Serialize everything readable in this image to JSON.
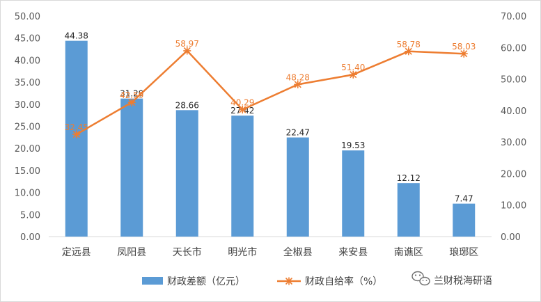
{
  "chart_data": {
    "type": "bar",
    "categories": [
      "定远县",
      "凤阳县",
      "天长市",
      "明光市",
      "全椒县",
      "来安县",
      "南谯区",
      "琅琊区"
    ],
    "series": [
      {
        "name": "财政差额（亿元）",
        "type": "bar",
        "axis": "left",
        "values": [
          44.38,
          31.29,
          28.66,
          27.42,
          22.47,
          19.53,
          12.12,
          7.47
        ],
        "labels": [
          "44.38",
          "31.29",
          "28.66",
          "27.42",
          "22.47",
          "19.53",
          "12.12",
          "7.47"
        ],
        "color": "#5b9bd5"
      },
      {
        "name": "财政自给率（%）",
        "type": "line",
        "axis": "right",
        "marker": "asterisk",
        "values": [
          32.45,
          42.59,
          58.97,
          40.29,
          48.28,
          51.4,
          58.78,
          58.03
        ],
        "labels": [
          "32.45",
          "42.59",
          "58.97",
          "40.29",
          "48.28",
          "51.40",
          "58.78",
          "58.03"
        ],
        "color": "#ed7d31"
      }
    ],
    "y_left": {
      "ylim": [
        0,
        50
      ],
      "ticks": [
        "0.00",
        "5.00",
        "10.00",
        "15.00",
        "20.00",
        "25.00",
        "30.00",
        "35.00",
        "40.00",
        "45.00",
        "50.00"
      ]
    },
    "y_right": {
      "ylim": [
        0,
        70
      ],
      "ticks": [
        "0.00",
        "10.00",
        "20.00",
        "30.00",
        "40.00",
        "50.00",
        "60.00",
        "70.00"
      ]
    },
    "grid": false,
    "legend_position": "bottom"
  },
  "watermark": {
    "text": "兰财税海研语",
    "icon": "wechat-icon"
  }
}
